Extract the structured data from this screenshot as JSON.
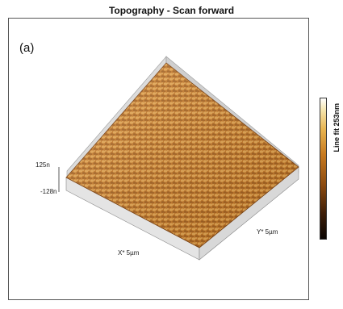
{
  "title": "Topography - Scan forward",
  "panel_label": "(a)",
  "z_axis": {
    "max_label": "125n",
    "min_label": "-128n"
  },
  "x_axis": {
    "label": "X* 5µm"
  },
  "y_axis": {
    "label": "Y* 5µm"
  },
  "colorbar": {
    "label": "Line fit  253nm"
  },
  "colors": {
    "surface_light": "#e6a04a",
    "surface_mid": "#c97a26",
    "surface_dark": "#8a4a12",
    "walls": "#d4d4d4"
  }
}
